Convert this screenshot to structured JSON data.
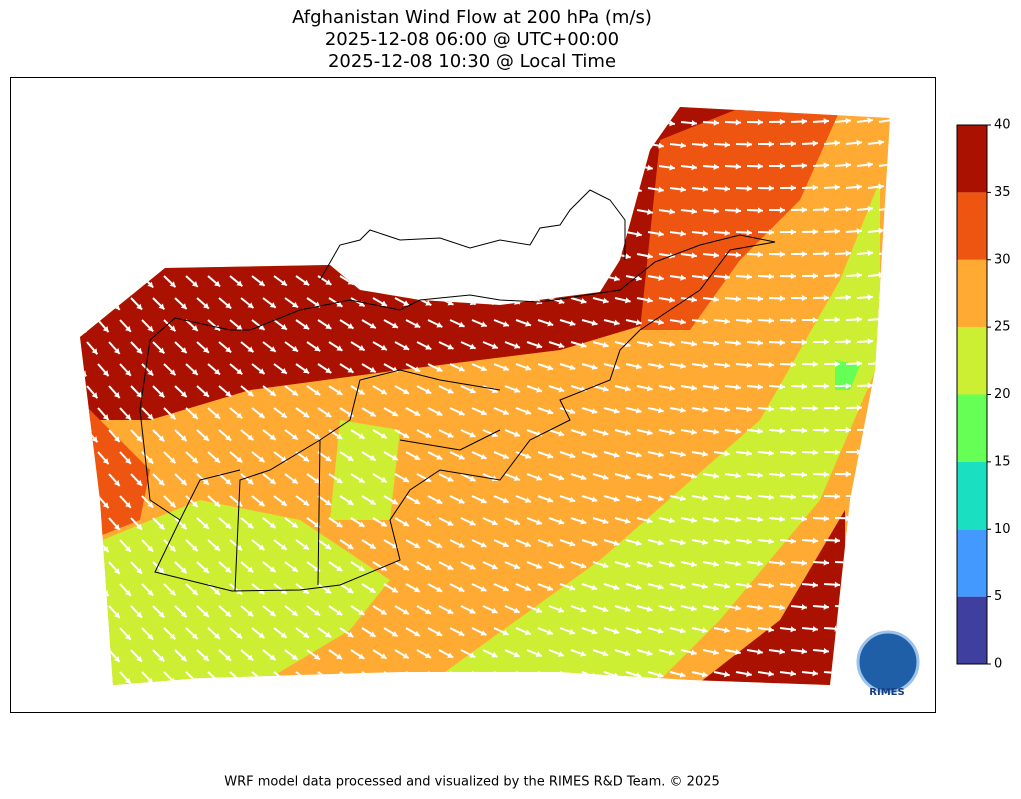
{
  "title": [
    "Afghanistan Wind Flow at 200 hPa (m/s)",
    "2025-12-08 06:00 @ UTC+00:00",
    "2025-12-08 10:30 @ Local Time"
  ],
  "colorbar": {
    "ticks": [
      0,
      5,
      10,
      15,
      20,
      25,
      30,
      35,
      40
    ],
    "colors": [
      "#3f3fa0",
      "#4499ff",
      "#1adfc0",
      "#66ff55",
      "#ccee33",
      "#ffaa33",
      "#ee5511",
      "#aa1100"
    ]
  },
  "logo": "RIMES",
  "footer": "WRF model data processed and visualized by the RIMES R&D Team. © 2025"
}
